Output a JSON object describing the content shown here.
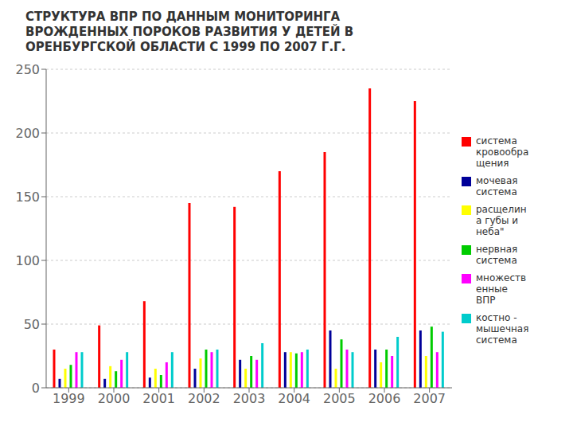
{
  "chart_data": {
    "type": "bar",
    "title": "СТРУКТУРА ВПР ПО ДАННЫМ МОНИТОРИНГА\nВРОЖДЕННЫХ ПОРОКОВ РАЗВИТИЯ У ДЕТЕЙ В\nОРЕНБУРГСКОЙ ОБЛАСТИ С 1999 ПО 2007 Г.Г.",
    "categories": [
      "1999",
      "2000",
      "2001",
      "2002",
      "2003",
      "2004",
      "2005",
      "2006",
      "2007"
    ],
    "series": [
      {
        "name": "система\nкровообра\nщения",
        "color": "#FF0000",
        "values": [
          30,
          49,
          68,
          145,
          142,
          170,
          185,
          235,
          225
        ]
      },
      {
        "name": "мочевая\nсистема",
        "color": "#000099",
        "values": [
          7,
          7,
          8,
          15,
          22,
          28,
          45,
          30,
          45
        ]
      },
      {
        "name": "расщелин\nа губы и\nнеба\"",
        "color": "#FFFF00",
        "values": [
          15,
          17,
          15,
          23,
          15,
          28,
          15,
          20,
          25
        ]
      },
      {
        "name": "нервная\nсистема",
        "color": "#00CC00",
        "values": [
          18,
          13,
          10,
          30,
          25,
          27,
          38,
          30,
          48
        ]
      },
      {
        "name": "множеств\nенные\nВПР",
        "color": "#FF00FF",
        "values": [
          28,
          22,
          20,
          28,
          22,
          28,
          30,
          25,
          28
        ]
      },
      {
        "name": "костно -\nмышечная\nсистема",
        "color": "#00CCCC",
        "values": [
          28,
          28,
          28,
          30,
          35,
          30,
          28,
          40,
          44
        ]
      }
    ],
    "ylim": [
      0,
      250
    ],
    "yticks": [
      0,
      50,
      100,
      150,
      200,
      250
    ],
    "grid": true,
    "legend": "right"
  }
}
